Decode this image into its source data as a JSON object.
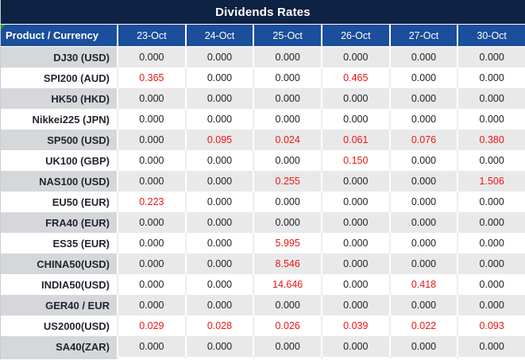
{
  "title": "Dividends Rates",
  "colors": {
    "title_bg": "#0e2243",
    "header_bg": "#1b4e9b",
    "stripe_product": "#d5d7da",
    "stripe_value": "#e9e9e9",
    "red_value": "#ee1414",
    "value_text": "#1f1f1f",
    "product_text": "#22262e",
    "header_text": "#ffffff",
    "corner_green": "#1f9a1f"
  },
  "table": {
    "product_header": "Product / Currency",
    "date_headers": [
      "23-Oct",
      "24-Oct",
      "25-Oct",
      "26-Oct",
      "27-Oct",
      "30-Oct"
    ],
    "rows": [
      {
        "product": "DJ30 (USD)",
        "values": [
          "0.000",
          "0.000",
          "0.000",
          "0.000",
          "0.000",
          "0.000"
        ],
        "red": [
          false,
          false,
          false,
          false,
          false,
          false
        ]
      },
      {
        "product": "SPI200 (AUD)",
        "values": [
          "0.365",
          "0.000",
          "0.000",
          "0.465",
          "0.000",
          "0.000"
        ],
        "red": [
          true,
          false,
          false,
          true,
          false,
          false
        ]
      },
      {
        "product": "HK50 (HKD)",
        "values": [
          "0.000",
          "0.000",
          "0.000",
          "0.000",
          "0.000",
          "0.000"
        ],
        "red": [
          false,
          false,
          false,
          false,
          false,
          false
        ]
      },
      {
        "product": "Nikkei225 (JPN)",
        "values": [
          "0.000",
          "0.000",
          "0.000",
          "0.000",
          "0.000",
          "0.000"
        ],
        "red": [
          false,
          false,
          false,
          false,
          false,
          false
        ]
      },
      {
        "product": "SP500 (USD)",
        "values": [
          "0.000",
          "0.095",
          "0.024",
          "0.061",
          "0.076",
          "0.380"
        ],
        "red": [
          false,
          true,
          true,
          true,
          true,
          true
        ]
      },
      {
        "product": "UK100 (GBP)",
        "values": [
          "0.000",
          "0.000",
          "0.000",
          "0.150",
          "0.000",
          "0.000"
        ],
        "red": [
          false,
          false,
          false,
          true,
          false,
          false
        ]
      },
      {
        "product": "NAS100 (USD)",
        "values": [
          "0.000",
          "0.000",
          "0.255",
          "0.000",
          "0.000",
          "1.506"
        ],
        "red": [
          false,
          false,
          true,
          false,
          false,
          true
        ]
      },
      {
        "product": "EU50 (EUR)",
        "values": [
          "0.223",
          "0.000",
          "0.000",
          "0.000",
          "0.000",
          "0.000"
        ],
        "red": [
          true,
          false,
          false,
          false,
          false,
          false
        ]
      },
      {
        "product": "FRA40 (EUR)",
        "values": [
          "0.000",
          "0.000",
          "0.000",
          "0.000",
          "0.000",
          "0.000"
        ],
        "red": [
          false,
          false,
          false,
          false,
          false,
          false
        ]
      },
      {
        "product": "ES35 (EUR)",
        "values": [
          "0.000",
          "0.000",
          "5.995",
          "0.000",
          "0.000",
          "0.000"
        ],
        "red": [
          false,
          false,
          true,
          false,
          false,
          false
        ]
      },
      {
        "product": "CHINA50(USD)",
        "values": [
          "0.000",
          "0.000",
          "8.546",
          "0.000",
          "0.000",
          "0.000"
        ],
        "red": [
          false,
          false,
          true,
          false,
          false,
          false
        ]
      },
      {
        "product": "INDIA50(USD)",
        "values": [
          "0.000",
          "0.000",
          "14.646",
          "0.000",
          "0.418",
          "0.000"
        ],
        "red": [
          false,
          false,
          true,
          false,
          true,
          false
        ]
      },
      {
        "product": "GER40 / EUR",
        "values": [
          "0.000",
          "0.000",
          "0.000",
          "0.000",
          "0.000",
          "0.000"
        ],
        "red": [
          false,
          false,
          false,
          false,
          false,
          false
        ]
      },
      {
        "product": "US2000(USD)",
        "values": [
          "0.029",
          "0.028",
          "0.026",
          "0.039",
          "0.022",
          "0.093"
        ],
        "red": [
          true,
          true,
          true,
          true,
          true,
          true
        ]
      },
      {
        "product": "SA40(ZAR)",
        "values": [
          "0.000",
          "0.000",
          "0.000",
          "0.000",
          "0.000",
          "0.000"
        ],
        "red": [
          false,
          false,
          false,
          false,
          false,
          false
        ]
      }
    ]
  }
}
